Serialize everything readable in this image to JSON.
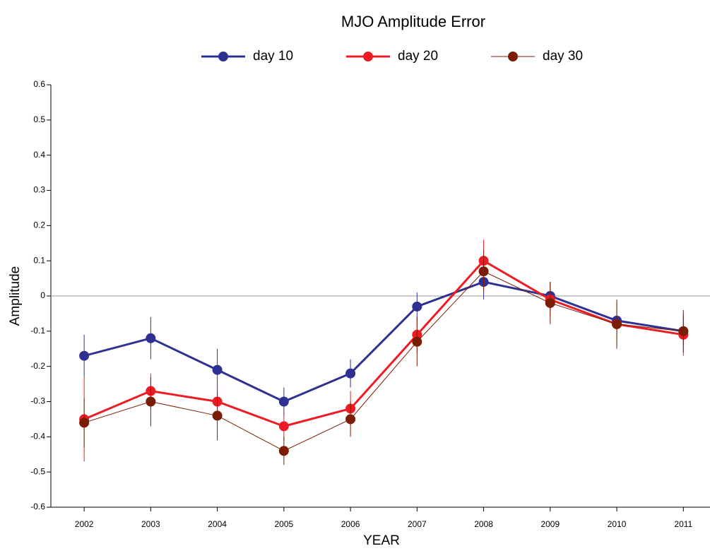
{
  "chart_data": {
    "type": "line",
    "title": "MJO Amplitude Error",
    "x_label": "YEAR",
    "y_label": "Amplitude",
    "x": [
      2002,
      2003,
      2004,
      2005,
      2006,
      2007,
      2008,
      2009,
      2010,
      2011
    ],
    "series": [
      {
        "name": "day 10",
        "color": "#2e3192",
        "values": [
          -0.17,
          -0.12,
          -0.21,
          -0.3,
          -0.22,
          -0.03,
          0.04,
          0.0,
          -0.07,
          -0.1
        ],
        "errors": [
          0.06,
          0.06,
          0.06,
          0.04,
          0.04,
          0.04,
          0.05,
          0.04,
          0.05,
          0.04
        ]
      },
      {
        "name": "day 20",
        "color": "#ed1c24",
        "values": [
          -0.35,
          -0.27,
          -0.3,
          -0.37,
          -0.32,
          -0.11,
          0.1,
          -0.01,
          -0.08,
          -0.11
        ],
        "errors": [
          0.12,
          0.05,
          0.05,
          0.04,
          0.05,
          0.05,
          0.06,
          0.05,
          0.06,
          0.06
        ]
      },
      {
        "name": "day 30",
        "color": "#7b1c04",
        "values": [
          -0.36,
          -0.3,
          -0.34,
          -0.44,
          -0.35,
          -0.13,
          0.07,
          -0.02,
          -0.08,
          -0.1
        ],
        "errors": [
          0.07,
          0.07,
          0.07,
          0.04,
          0.05,
          0.07,
          0.06,
          0.06,
          0.07,
          0.06
        ]
      }
    ],
    "xlim": [
      2001.5,
      2011.4
    ],
    "xticks": [
      2002,
      2003,
      2004,
      2005,
      2006,
      2007,
      2008,
      2009,
      2010,
      2011
    ],
    "ylim": [
      -0.6,
      0.6
    ],
    "yticks": [
      -0.6,
      -0.5,
      -0.4,
      -0.3,
      -0.2,
      -0.1,
      0,
      0.1,
      0.2,
      0.3,
      0.4,
      0.5,
      0.6
    ],
    "legend": "top"
  }
}
